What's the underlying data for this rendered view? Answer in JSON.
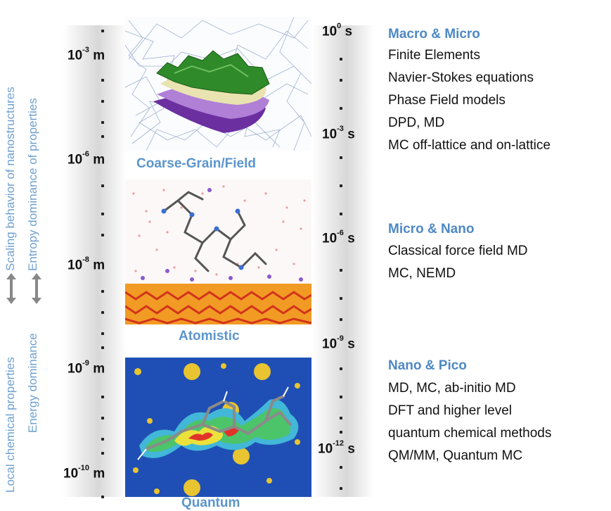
{
  "side_labels": {
    "scaling": "Scaling behavior of nanostructures",
    "local": "Local chemical properties",
    "entropy": "Entropy dominance of properties",
    "energy": "Energy dominance"
  },
  "length_scale": [
    {
      "base": "10",
      "exp": "-3",
      "unit": " m"
    },
    {
      "base": "10",
      "exp": "-6",
      "unit": " m"
    },
    {
      "base": "10",
      "exp": "-8",
      "unit": " m"
    },
    {
      "base": "10",
      "exp": "-9",
      "unit": " m"
    },
    {
      "base": "10",
      "exp": "-10",
      "unit": " m"
    }
  ],
  "time_scale": [
    {
      "base": "10",
      "exp": "0",
      "unit": " s"
    },
    {
      "base": "10",
      "exp": "-3",
      "unit": " s"
    },
    {
      "base": "10",
      "exp": "-6",
      "unit": " s"
    },
    {
      "base": "10",
      "exp": "-9",
      "unit": " s"
    },
    {
      "base": "10",
      "exp": "-12",
      "unit": " s"
    }
  ],
  "panels": {
    "coarse": "Coarse-Grain/Field",
    "atomistic": "Atomistic",
    "quantum": "Quantum"
  },
  "methods": {
    "macro": {
      "heading": "Macro & Micro",
      "items": [
        "Finite Elements",
        "Navier-Stokes equations",
        "Phase Field models",
        "DPD, MD",
        "MC off-lattice and on-lattice"
      ]
    },
    "micro": {
      "heading": "Micro & Nano",
      "items": [
        "Classical force field MD",
        "MC, NEMD"
      ]
    },
    "nano": {
      "heading": "Nano & Pico",
      "items": [
        "MD, MC, ab-initio MD",
        "DFT and higher level",
        "quantum chemical methods",
        "QM/MM, Quantum MC"
      ]
    }
  },
  "colors": {
    "accent_blue": "#4e89c4",
    "quantum_bg": "#1f4fb5"
  }
}
